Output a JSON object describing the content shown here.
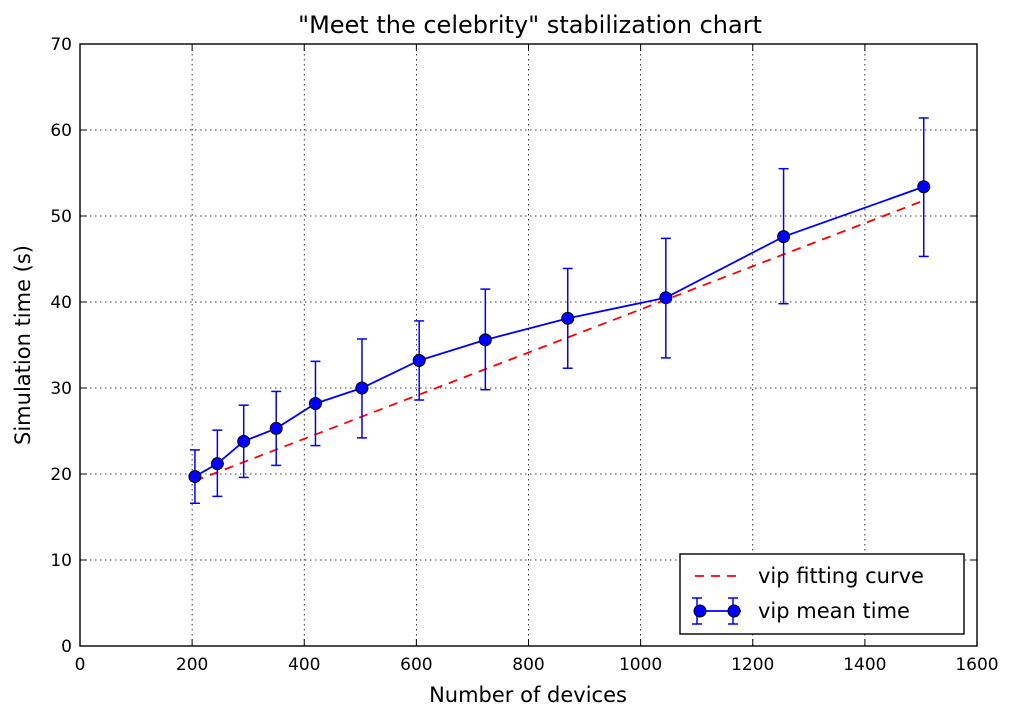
{
  "chart_data": {
    "type": "line",
    "title": "\"Meet the celebrity\" stabilization chart",
    "xlabel": "Number of devices",
    "ylabel": "Simulation time (s)",
    "xlim": [
      0,
      1600
    ],
    "ylim": [
      0,
      70
    ],
    "xticks": [
      0,
      200,
      400,
      600,
      800,
      1000,
      1200,
      1400,
      1600
    ],
    "yticks": [
      0,
      10,
      20,
      30,
      40,
      50,
      60,
      70
    ],
    "grid": true,
    "legend_position": "lower-right",
    "series": [
      {
        "name": "vip fitting curve",
        "style": "dashed",
        "color": "#ff0000",
        "x": [
          205,
          1505
        ],
        "y": [
          19.2,
          51.8
        ]
      },
      {
        "name": "vip mean time",
        "style": "solid-markers-errorbars",
        "color": "#0000ff",
        "x": [
          205,
          245,
          292,
          350,
          420,
          503,
          605,
          723,
          870,
          1045,
          1255,
          1505
        ],
        "y": [
          19.7,
          21.2,
          23.8,
          25.3,
          28.2,
          30.0,
          33.2,
          35.6,
          38.1,
          40.5,
          47.6,
          53.4
        ],
        "err_low": [
          16.6,
          17.4,
          19.6,
          21.0,
          23.3,
          24.2,
          28.6,
          29.8,
          32.3,
          33.5,
          39.8,
          45.3
        ],
        "err_high": [
          22.8,
          25.1,
          28.0,
          29.6,
          33.1,
          35.7,
          37.8,
          41.5,
          43.9,
          47.4,
          55.5,
          61.4
        ]
      }
    ]
  }
}
